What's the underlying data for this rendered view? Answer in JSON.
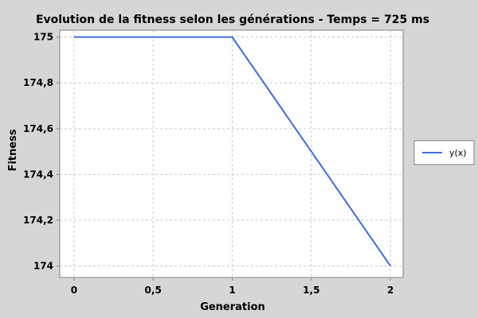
{
  "chart_data": {
    "type": "line",
    "title": "Evolution de la fitness selon les générations - Temps = 725 ms",
    "xlabel": "Generation",
    "ylabel": "Fitness",
    "x_ticks": [
      0,
      0.5,
      1,
      1.5,
      2
    ],
    "x_tick_labels": [
      "0",
      "0,5",
      "1",
      "1,5",
      "2"
    ],
    "y_ticks": [
      174,
      174.2,
      174.4,
      174.6,
      174.8,
      175
    ],
    "y_tick_labels": [
      "174",
      "174,2",
      "174,4",
      "174,6",
      "174,8",
      "175"
    ],
    "xlim": [
      -0.09,
      2.08
    ],
    "ylim": [
      173.95,
      175.03
    ],
    "grid": true,
    "legend_position": "right",
    "series": [
      {
        "name": "y(x)",
        "color": "#4169e1",
        "x": [
          0,
          1,
          2
        ],
        "y": [
          175,
          175,
          174
        ]
      }
    ]
  }
}
